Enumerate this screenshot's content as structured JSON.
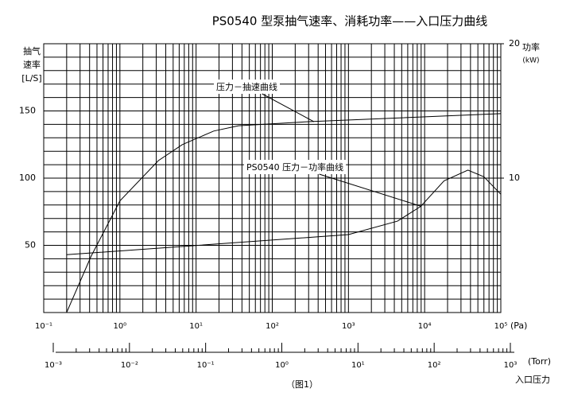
{
  "chart_data": {
    "type": "line",
    "title": "PS0540 型泵抽气速率、消耗功率——入口压力曲线",
    "caption": "（图1）",
    "y_label": [
      "抽气",
      "速率",
      "[L/S]"
    ],
    "y2_label": [
      "功率",
      "(kW)"
    ],
    "x_unit": "(Pa)",
    "x2_unit": "(Torr)",
    "x2_label": "入口压力",
    "xscale": "log",
    "xlim": [
      0.1,
      100000
    ],
    "xticks": [
      {
        "value": 0.1,
        "label": "10⁻¹"
      },
      {
        "value": 1,
        "label": "10⁰"
      },
      {
        "value": 10,
        "label": "10¹"
      },
      {
        "value": 100,
        "label": "10²"
      },
      {
        "value": 1000,
        "label": "10³"
      },
      {
        "value": 10000,
        "label": "10⁴"
      },
      {
        "value": 100000,
        "label": "10⁵"
      }
    ],
    "x2lim": [
      0.001,
      1000
    ],
    "x2ticks": [
      {
        "value": 0.001,
        "label": "10⁻³"
      },
      {
        "value": 0.01,
        "label": "10⁻²"
      },
      {
        "value": 0.1,
        "label": "10⁻¹"
      },
      {
        "value": 1,
        "label": "10⁰"
      },
      {
        "value": 10,
        "label": "10¹"
      },
      {
        "value": 100,
        "label": "10²"
      },
      {
        "value": 1000,
        "label": "10³"
      }
    ],
    "ylim": [
      0,
      200
    ],
    "yticks": [
      50,
      100,
      150
    ],
    "y2lim": [
      0,
      20
    ],
    "y2ticks": [
      10,
      20
    ],
    "grid": true,
    "series": [
      {
        "name": "压力－抽速曲线",
        "color": "#000000",
        "axis": "y",
        "x": [
          0.2,
          0.42,
          1,
          3.2,
          6.6,
          17,
          36,
          300,
          100000
        ],
        "values": [
          0,
          42,
          83,
          113,
          125,
          135,
          139,
          142,
          148
        ]
      },
      {
        "name": "PS0540 压力－功率曲线",
        "color": "#000000",
        "axis": "y2",
        "x": [
          0.2,
          1000,
          4400,
          8900,
          18000,
          37000,
          60000,
          100000
        ],
        "values": [
          4.3,
          5.8,
          6.8,
          7.9,
          9.8,
          10.6,
          10.1,
          8.8
        ]
      }
    ]
  }
}
